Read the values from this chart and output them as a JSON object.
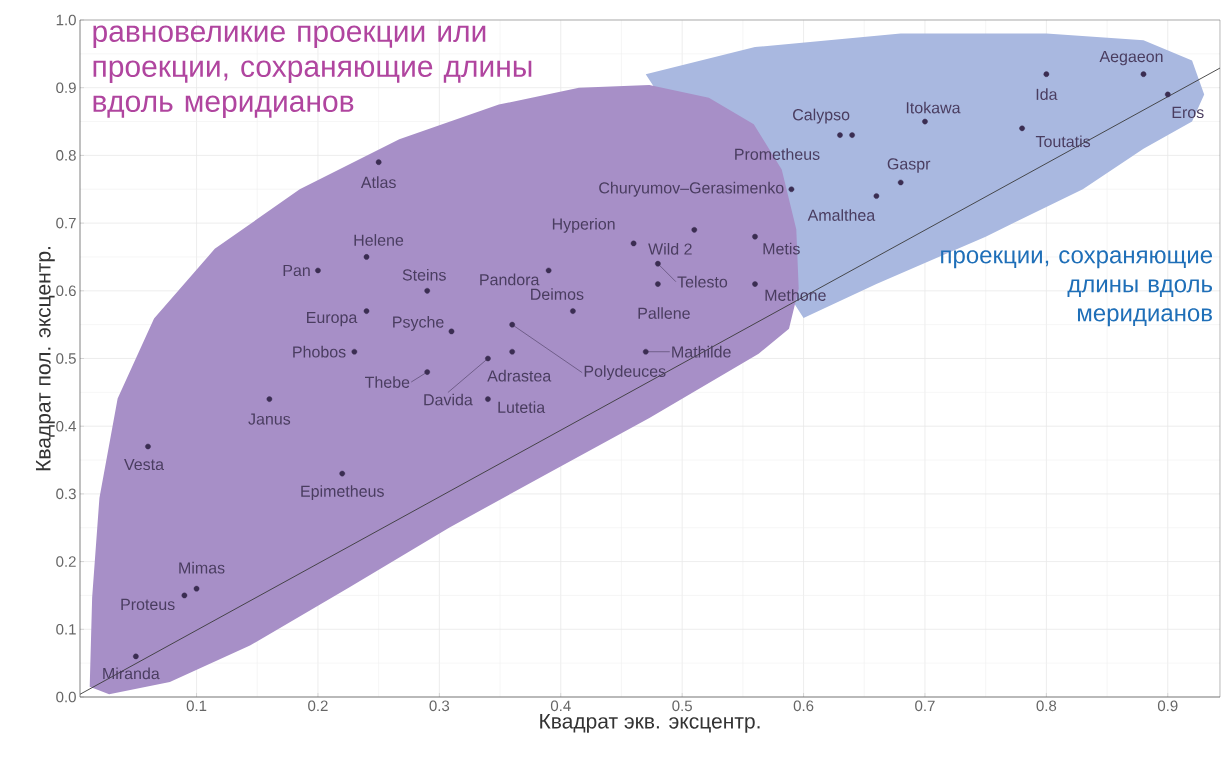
{
  "chart_data": {
    "type": "scatter",
    "xlabel": "Квадрат экв. эксцентр.",
    "ylabel": "Квадрат пол. эксцентр.",
    "xlim": [
      0.004,
      0.943
    ],
    "ylim": [
      0,
      1.0
    ],
    "xticks": [
      0.1,
      0.2,
      0.3,
      0.4,
      0.5,
      0.6,
      0.7,
      0.8,
      0.9
    ],
    "yticks": [
      {
        "value": 0,
        "label": "0.0"
      },
      0.1,
      0.2,
      0.3,
      0.4,
      0.5,
      0.6,
      0.7,
      0.8,
      0.9,
      {
        "value": 1.0,
        "label": "1.0"
      }
    ],
    "grid": true,
    "series": [
      {
        "type": "area",
        "name": "проекции, сохраняющие длины вдоль меридианов",
        "color": "#a9b8e0",
        "x": [
          0.47,
          0.56,
          0.68,
          0.8,
          0.88,
          0.92,
          0.93,
          0.92,
          0.88,
          0.83,
          0.75,
          0.66,
          0.6
        ],
        "values": [
          0.92,
          0.96,
          0.98,
          0.98,
          0.97,
          0.94,
          0.89,
          0.85,
          0.81,
          0.75,
          0.68,
          0.61,
          0.56
        ]
      },
      {
        "type": "area",
        "name": "равновеликие проекции или проекции, сохраняющие длины вдоль меридианов",
        "color": "#a78fc7",
        "x": [
          0.012,
          0.014,
          0.02,
          0.035,
          0.065,
          0.115,
          0.185,
          0.267,
          0.349,
          0.415,
          0.473,
          0.522,
          0.559,
          0.582,
          0.594,
          0.596,
          0.588,
          0.563,
          0.473,
          0.39,
          0.308,
          0.226,
          0.144,
          0.078,
          0.028
        ],
        "values": [
          0.015,
          0.147,
          0.294,
          0.441,
          0.559,
          0.662,
          0.75,
          0.824,
          0.875,
          0.9,
          0.904,
          0.885,
          0.846,
          0.779,
          0.691,
          0.603,
          0.544,
          0.507,
          0.412,
          0.331,
          0.25,
          0.162,
          0.076,
          0.022,
          0.004
        ]
      },
      {
        "type": "line",
        "color": "#3a3a3a",
        "x": [
          0.004,
          0.943
        ],
        "values": [
          0.004,
          0.929
        ]
      },
      {
        "type": "scatter",
        "marker": "circle",
        "color": "#3b2d52",
        "x": [
          0.25,
          0.24,
          0.2,
          0.29,
          0.24,
          0.31,
          0.23,
          0.29,
          0.34,
          0.36,
          0.34,
          0.16,
          0.06,
          0.22,
          0.1,
          0.09,
          0.05,
          0.39,
          0.41,
          0.46,
          0.51,
          0.48,
          0.48,
          0.56,
          0.56,
          0.47,
          0.36,
          0.59,
          0.64,
          0.63,
          0.7,
          0.68,
          0.66,
          0.78,
          0.8,
          0.88,
          0.9
        ],
        "values": [
          0.79,
          0.65,
          0.63,
          0.6,
          0.57,
          0.54,
          0.51,
          0.48,
          0.5,
          0.51,
          0.44,
          0.44,
          0.37,
          0.33,
          0.16,
          0.15,
          0.06,
          0.63,
          0.57,
          0.67,
          0.69,
          0.64,
          0.61,
          0.68,
          0.61,
          0.51,
          0.55,
          0.75,
          0.83,
          0.83,
          0.85,
          0.76,
          0.74,
          0.84,
          0.92,
          0.92,
          0.89
        ]
      }
    ],
    "annotations": [
      {
        "text": "Atlas",
        "x": 0.25,
        "y": 0.79
      },
      {
        "text": "Helene",
        "x": 0.24,
        "y": 0.65
      },
      {
        "text": "Pan",
        "x": 0.2,
        "y": 0.63
      },
      {
        "text": "Steins",
        "x": 0.29,
        "y": 0.6
      },
      {
        "text": "Europa",
        "x": 0.24,
        "y": 0.57
      },
      {
        "text": "Psyche",
        "x": 0.31,
        "y": 0.54
      },
      {
        "text": "Phobos",
        "x": 0.23,
        "y": 0.51
      },
      {
        "text": "Thebe",
        "x": 0.29,
        "y": 0.48
      },
      {
        "text": "Davida",
        "x": 0.34,
        "y": 0.5
      },
      {
        "text": "Adrastea",
        "x": 0.36,
        "y": 0.51
      },
      {
        "text": "Lutetia",
        "x": 0.34,
        "y": 0.44
      },
      {
        "text": "Janus",
        "x": 0.16,
        "y": 0.44
      },
      {
        "text": "Vesta",
        "x": 0.06,
        "y": 0.37
      },
      {
        "text": "Epimetheus",
        "x": 0.22,
        "y": 0.33
      },
      {
        "text": "Mimas",
        "x": 0.1,
        "y": 0.16
      },
      {
        "text": "Proteus",
        "x": 0.09,
        "y": 0.15
      },
      {
        "text": "Miranda",
        "x": 0.05,
        "y": 0.06
      },
      {
        "text": "Pandora",
        "x": 0.39,
        "y": 0.63
      },
      {
        "text": "Deimos",
        "x": 0.41,
        "y": 0.57
      },
      {
        "text": "Hyperion",
        "x": 0.46,
        "y": 0.67
      },
      {
        "text": "Wild 2",
        "x": 0.51,
        "y": 0.69
      },
      {
        "text": "Telesto",
        "x": 0.48,
        "y": 0.64
      },
      {
        "text": "Pallene",
        "x": 0.48,
        "y": 0.61
      },
      {
        "text": "Metis",
        "x": 0.56,
        "y": 0.68
      },
      {
        "text": "Methone",
        "x": 0.56,
        "y": 0.61
      },
      {
        "text": "Mathilde",
        "x": 0.47,
        "y": 0.51
      },
      {
        "text": "Polydeuces",
        "x": 0.36,
        "y": 0.55
      },
      {
        "text": "Churyumov–Gerasimenko",
        "x": 0.59,
        "y": 0.75
      },
      {
        "text": "Calypso",
        "x": 0.64,
        "y": 0.83
      },
      {
        "text": "Prometheus",
        "x": 0.63,
        "y": 0.83
      },
      {
        "text": "Itokawa",
        "x": 0.7,
        "y": 0.85
      },
      {
        "text": "Gaspr",
        "x": 0.68,
        "y": 0.76
      },
      {
        "text": "Amalthea",
        "x": 0.66,
        "y": 0.74
      },
      {
        "text": "Toutatis",
        "x": 0.78,
        "y": 0.84
      },
      {
        "text": "Ida",
        "x": 0.8,
        "y": 0.92
      },
      {
        "text": "Aegaeon",
        "x": 0.88,
        "y": 0.92
      },
      {
        "text": "Eros",
        "x": 0.9,
        "y": 0.89
      }
    ]
  }
}
